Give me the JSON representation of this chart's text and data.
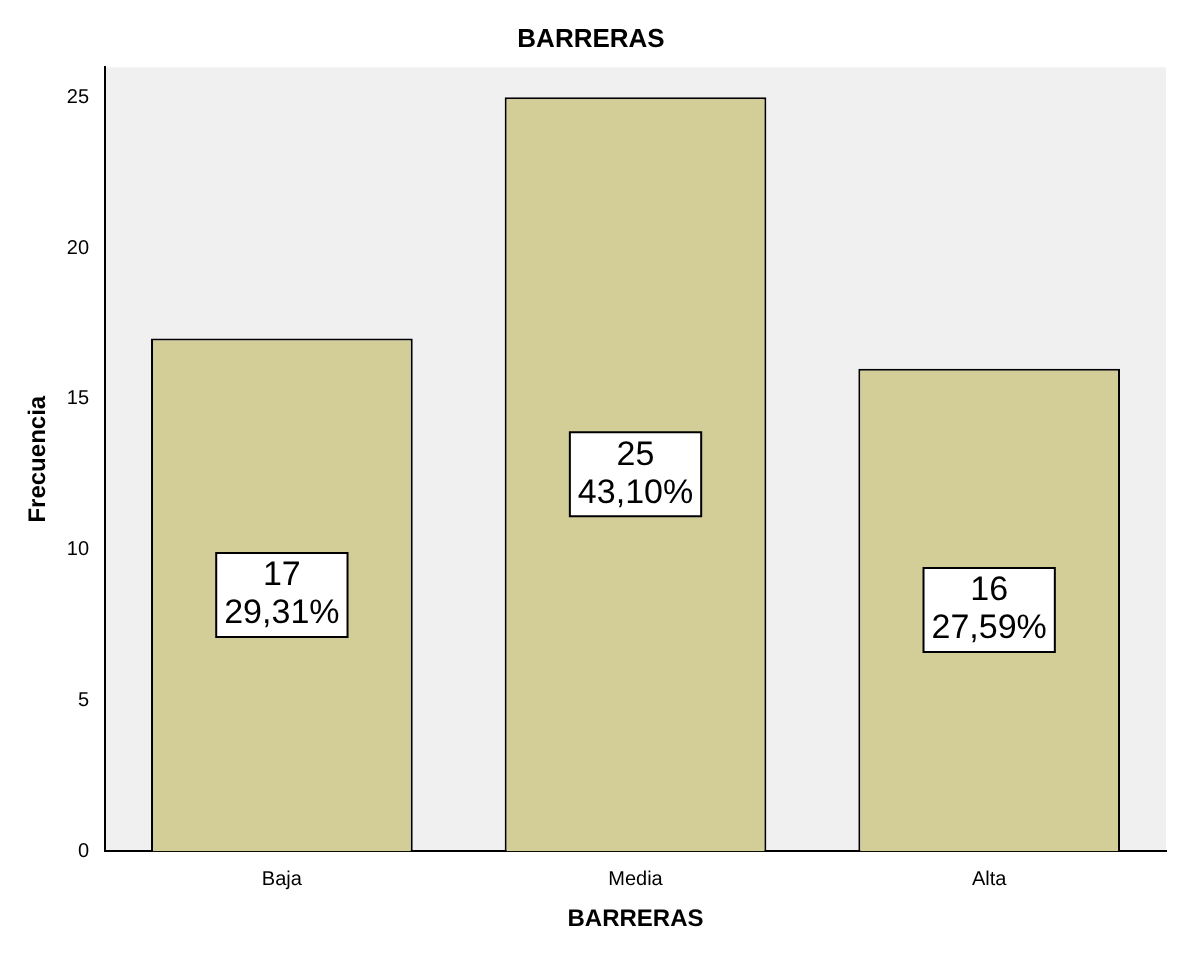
{
  "chart_data": {
    "type": "bar",
    "title": "BARRERAS",
    "xlabel": "BARRERAS",
    "ylabel": "Frecuencia",
    "categories": [
      "Baja",
      "Media",
      "Alta"
    ],
    "values": [
      17,
      25,
      16
    ],
    "value_labels": [
      "17\n29,31%",
      "25\n43,10%",
      "16\n27,59%"
    ],
    "color": "#d3ce97",
    "ylim": [
      0,
      26
    ],
    "yticks": [
      0,
      5,
      10,
      15,
      20,
      25
    ],
    "grid": false,
    "legend": false
  }
}
